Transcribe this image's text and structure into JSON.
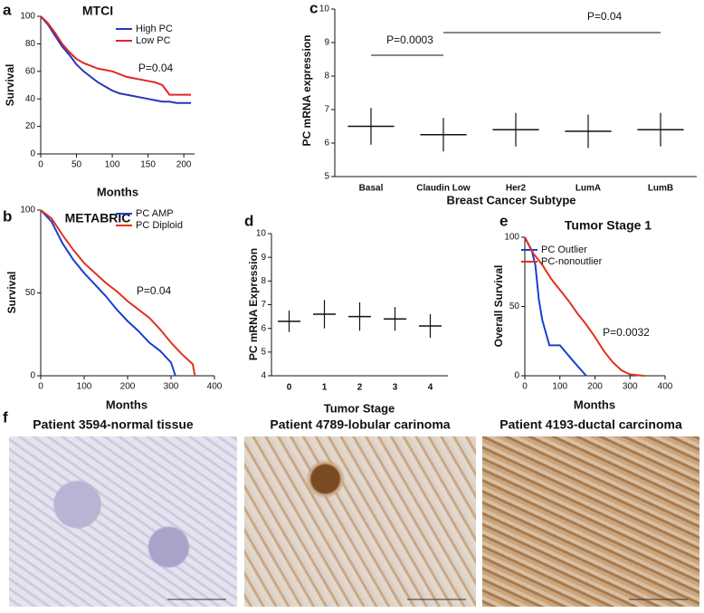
{
  "chart_data": [
    {
      "type": "line",
      "panel": "a",
      "title": "MTCI",
      "xlabel": "Months",
      "ylabel": "Survival",
      "xlim": [
        0,
        215
      ],
      "xticks": [
        0,
        50,
        100,
        150,
        200
      ],
      "ylim": [
        0,
        100
      ],
      "yticks": [
        0,
        20,
        40,
        60,
        80,
        100
      ],
      "annotations": [
        "P=0.04"
      ],
      "series": [
        {
          "name": "High PC",
          "color": "#2a35b8",
          "x": [
            0,
            10,
            20,
            30,
            40,
            50,
            60,
            70,
            80,
            90,
            100,
            110,
            120,
            130,
            140,
            150,
            160,
            170,
            180,
            190,
            200,
            210
          ],
          "values": [
            100,
            94,
            86,
            78,
            72,
            65,
            60,
            56,
            52,
            49,
            46,
            44,
            43,
            42,
            41,
            40,
            39,
            38,
            38,
            37,
            37,
            37
          ]
        },
        {
          "name": "Low PC",
          "color": "#e0262a",
          "x": [
            0,
            10,
            20,
            30,
            40,
            50,
            60,
            70,
            80,
            90,
            100,
            110,
            120,
            130,
            140,
            150,
            160,
            170,
            180,
            190,
            200,
            210
          ],
          "values": [
            100,
            95,
            88,
            80,
            74,
            69,
            66,
            64,
            62,
            61,
            60,
            58,
            56,
            55,
            54,
            53,
            52,
            50,
            43,
            43,
            43,
            43
          ]
        }
      ]
    },
    {
      "type": "line",
      "panel": "b",
      "title": "METABRIC",
      "xlabel": "Months",
      "ylabel": "Survival",
      "xlim": [
        0,
        400
      ],
      "xticks": [
        0,
        100,
        200,
        300,
        400
      ],
      "ylim": [
        0,
        100
      ],
      "yticks": [
        0,
        50,
        100
      ],
      "annotations": [
        "P=0.04"
      ],
      "series": [
        {
          "name": "PC AMP",
          "color": "#1a3fd0",
          "x": [
            0,
            25,
            50,
            75,
            100,
            125,
            150,
            175,
            200,
            225,
            250,
            275,
            300,
            310
          ],
          "values": [
            100,
            93,
            80,
            70,
            62,
            55,
            48,
            40,
            33,
            27,
            20,
            15,
            8,
            0
          ]
        },
        {
          "name": "PC Diploid",
          "color": "#e0321e",
          "x": [
            0,
            25,
            50,
            75,
            100,
            125,
            150,
            175,
            200,
            225,
            250,
            275,
            300,
            325,
            350,
            355
          ],
          "values": [
            100,
            95,
            85,
            76,
            68,
            62,
            56,
            51,
            45,
            40,
            35,
            28,
            20,
            13,
            7,
            0
          ]
        }
      ]
    },
    {
      "type": "dot",
      "panel": "c",
      "xlabel": "Breast Cancer Subtype",
      "ylabel": "PC mRNA expression",
      "ylim": [
        5,
        10
      ],
      "yticks": [
        5,
        6,
        7,
        8,
        9,
        10
      ],
      "color": "#111111",
      "annotations": [
        "P=0.0003",
        "P=0.04"
      ],
      "categories": [
        "Basal",
        "Claudin Low",
        "Her2",
        "LumA",
        "LumB"
      ],
      "values": [
        6.5,
        6.25,
        6.4,
        6.35,
        6.4
      ],
      "errors": [
        0.55,
        0.5,
        0.5,
        0.5,
        0.5
      ]
    },
    {
      "type": "dot",
      "panel": "d",
      "xlabel": "Tumor Stage",
      "ylabel": "PC mRNA Expression",
      "ylim": [
        4,
        10
      ],
      "yticks": [
        4,
        5,
        6,
        7,
        8,
        9,
        10
      ],
      "color": "#111111",
      "categories": [
        "0",
        "1",
        "2",
        "3",
        "4"
      ],
      "values": [
        6.3,
        6.6,
        6.5,
        6.4,
        6.1
      ],
      "errors": [
        0.45,
        0.6,
        0.6,
        0.5,
        0.5
      ]
    },
    {
      "type": "line",
      "panel": "e",
      "title": "Tumor Stage 1",
      "xlabel": "Months",
      "ylabel": "Overall Survival",
      "xlim": [
        0,
        400
      ],
      "xticks": [
        0,
        100,
        200,
        300,
        400
      ],
      "ylim": [
        0,
        100
      ],
      "yticks": [
        0,
        50,
        100
      ],
      "annotations": [
        "P=0.0032"
      ],
      "series": [
        {
          "name": "PC Outlier",
          "color": "#1a3fd0",
          "x": [
            0,
            20,
            30,
            40,
            50,
            70,
            100,
            140,
            175
          ],
          "values": [
            100,
            90,
            80,
            55,
            40,
            22,
            22,
            10,
            0
          ]
        },
        {
          "name": "PC-nonoutlier",
          "color": "#e0321e",
          "x": [
            0,
            25,
            50,
            75,
            100,
            125,
            150,
            175,
            200,
            225,
            250,
            275,
            300,
            340
          ],
          "values": [
            100,
            88,
            80,
            70,
            62,
            54,
            45,
            37,
            28,
            18,
            10,
            4,
            1,
            0
          ]
        }
      ]
    }
  ],
  "figure": {
    "panel": "f",
    "images": [
      {
        "caption": "Patient 3594-normal tissue"
      },
      {
        "caption": "Patient 4789-lobular carinoma"
      },
      {
        "caption": "Patient 4193-ductal carcinoma"
      }
    ]
  }
}
